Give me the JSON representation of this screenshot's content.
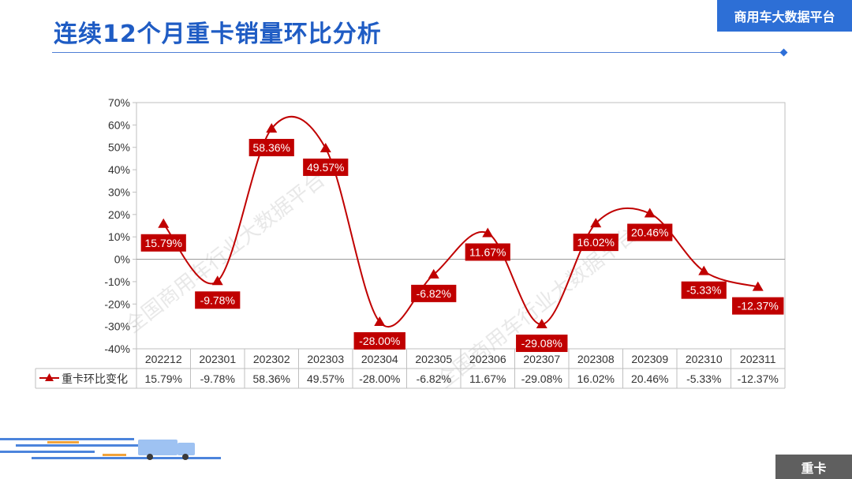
{
  "header": {
    "title": "连续12个月重卡销量环比分析",
    "platform": "商用车大数据平台"
  },
  "footer": {
    "category": "重卡"
  },
  "watermark": {
    "text": "全国商用车行业大数据平台"
  },
  "colors": {
    "title": "#1f5cc4",
    "badge": "#2d6fd6",
    "series": "#c00000",
    "tag": "#5f5f5f"
  },
  "chart_data": {
    "type": "line",
    "smooth": true,
    "categories": [
      "202212",
      "202301",
      "202302",
      "202303",
      "202304",
      "202305",
      "202306",
      "202307",
      "202308",
      "202309",
      "202310",
      "202311"
    ],
    "series": [
      {
        "name": "重卡环比变化",
        "marker": "triangle",
        "values": [
          15.79,
          -9.78,
          58.36,
          49.57,
          -28.0,
          -6.82,
          11.67,
          -29.08,
          16.02,
          20.46,
          -5.33,
          -12.37
        ],
        "labels": [
          "15.79%",
          "-9.78%",
          "58.36%",
          "49.57%",
          "-28.00%",
          "-6.82%",
          "11.67%",
          "-29.08%",
          "16.02%",
          "20.46%",
          "-5.33%",
          "-12.37%"
        ]
      }
    ],
    "ylim": [
      -40,
      70
    ],
    "yticks": [
      "70%",
      "60%",
      "50%",
      "40%",
      "30%",
      "20%",
      "10%",
      "0%",
      "-10%",
      "-20%",
      "-30%",
      "-40%"
    ],
    "ytick_values": [
      70,
      60,
      50,
      40,
      30,
      20,
      10,
      0,
      -10,
      -20,
      -30,
      -40
    ],
    "data_table": true,
    "grid": false,
    "legend": "data-table"
  }
}
